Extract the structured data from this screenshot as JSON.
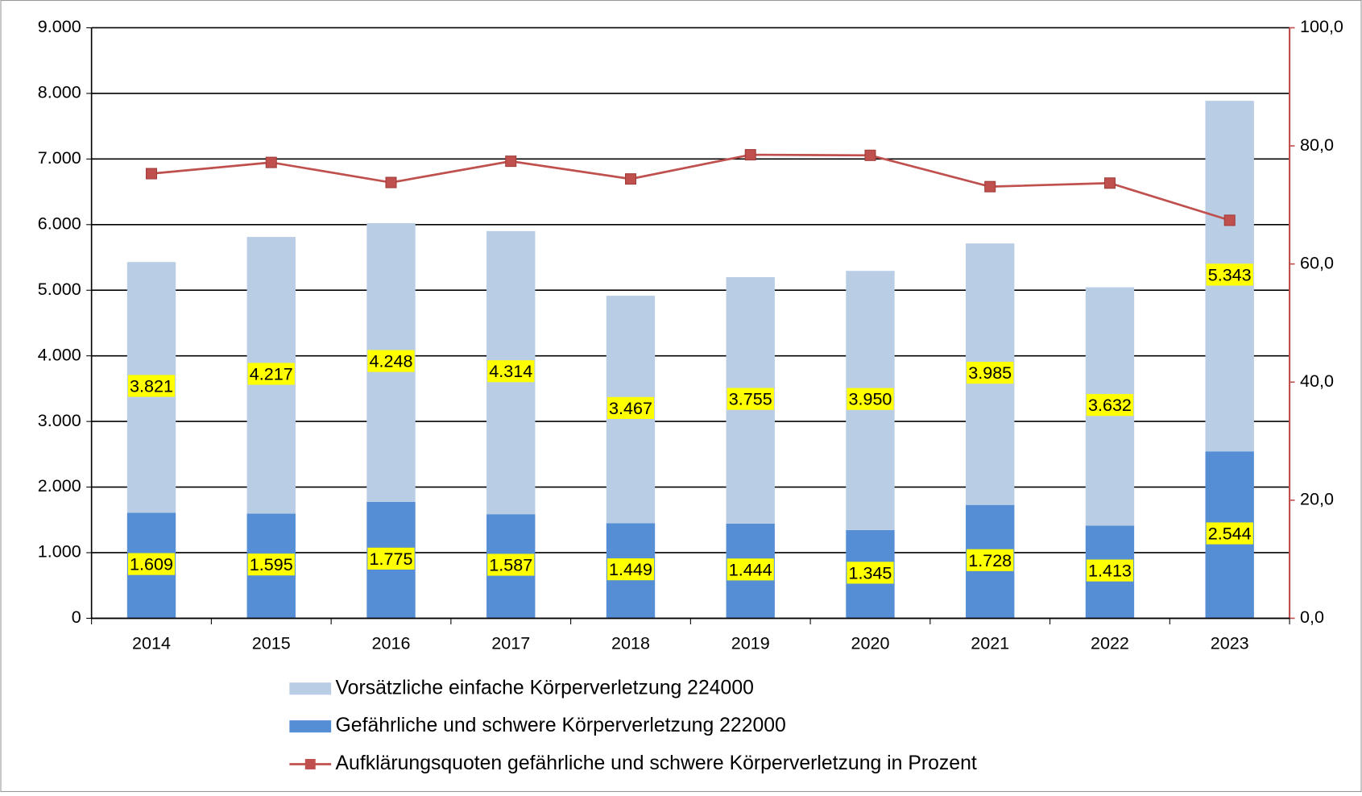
{
  "chart_data": {
    "type": "bar",
    "categories": [
      "2014",
      "2015",
      "2016",
      "2017",
      "2018",
      "2019",
      "2020",
      "2021",
      "2022",
      "2023"
    ],
    "stacked": true,
    "series": [
      {
        "name": "Gefährliche und schwere Körperverletzung 222000",
        "color": "#558ed5",
        "values": [
          1609,
          1595,
          1775,
          1587,
          1449,
          1444,
          1345,
          1728,
          1413,
          2544
        ],
        "value_labels": [
          "1.609",
          "1.595",
          "1.775",
          "1.587",
          "1.449",
          "1.444",
          "1.345",
          "1.728",
          "1.413",
          "2.544"
        ]
      },
      {
        "name": "Vorsätzliche einfache Körperverletzung 224000",
        "color": "#b9cde5",
        "values": [
          3821,
          4217,
          4248,
          4314,
          3467,
          3755,
          3950,
          3985,
          3632,
          5343
        ],
        "value_labels": [
          "3.821",
          "4.217",
          "4.248",
          "4.314",
          "3.467",
          "3.755",
          "3.950",
          "3.985",
          "3.632",
          "5.343"
        ]
      },
      {
        "name": "Aufklärungsquoten gefährliche und schwere Körperverletzung in Prozent",
        "color": "#c0504d",
        "type": "line",
        "axis": "y2",
        "values": [
          75.3,
          77.2,
          73.8,
          77.4,
          74.4,
          78.5,
          78.4,
          73.1,
          73.7,
          67.4
        ]
      }
    ],
    "legend_order": [
      1,
      0,
      2
    ],
    "ylim": [
      0,
      9000
    ],
    "yticks": [
      0,
      {
        "value": 1000,
        "label": "1.000"
      },
      {
        "value": 2000,
        "label": "2.000"
      },
      {
        "value": 3000,
        "label": "3.000"
      },
      {
        "value": 4000,
        "label": "4.000"
      },
      {
        "value": 5000,
        "label": "5.000"
      },
      {
        "value": 6000,
        "label": "6.000"
      },
      {
        "value": 7000,
        "label": "7.000"
      },
      {
        "value": 8000,
        "label": "8.000"
      },
      {
        "value": 9000,
        "label": "9.000"
      }
    ],
    "y2lim": [
      0,
      100
    ],
    "y2ticks": [
      {
        "value": 0,
        "label": "0,0"
      },
      {
        "value": 20,
        "label": "20,0"
      },
      {
        "value": 40,
        "label": "40,0"
      },
      {
        "value": 60,
        "label": "60,0"
      },
      {
        "value": 80,
        "label": "80,0"
      },
      {
        "value": 100,
        "label": "100,0"
      }
    ],
    "grid": true
  }
}
